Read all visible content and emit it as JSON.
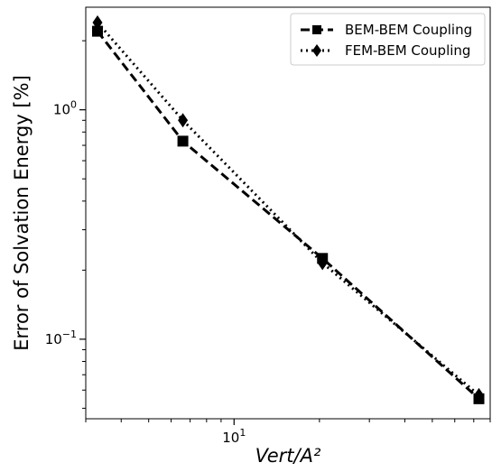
{
  "chart_data": {
    "type": "line",
    "xscale": "log",
    "yscale": "log",
    "xlim": [
      3.0,
      80.0
    ],
    "ylim": [
      0.045,
      2.8
    ],
    "xlabel": "Vert/A²",
    "ylabel": "Error of Solvation Energy [%]",
    "x_ticks": [
      {
        "value": 10,
        "base": "10",
        "exp": "1"
      }
    ],
    "y_ticks": [
      {
        "value": 1.0,
        "base": "10",
        "exp": "0"
      },
      {
        "value": 0.1,
        "base": "10",
        "exp": "−1"
      }
    ],
    "grid": false,
    "legend": "top-right",
    "series": [
      {
        "name": "BEM-BEM Coupling",
        "style": "dashed",
        "marker": "square",
        "color": "#000000",
        "x": [
          3.3,
          6.6,
          20.5,
          73.0
        ],
        "y": [
          2.2,
          0.73,
          0.225,
          0.055
        ]
      },
      {
        "name": "FEM-BEM Coupling",
        "style": "dotted",
        "marker": "diamond",
        "color": "#000000",
        "x": [
          3.3,
          6.6,
          20.5,
          73.0
        ],
        "y": [
          2.4,
          0.9,
          0.215,
          0.057
        ]
      }
    ]
  }
}
